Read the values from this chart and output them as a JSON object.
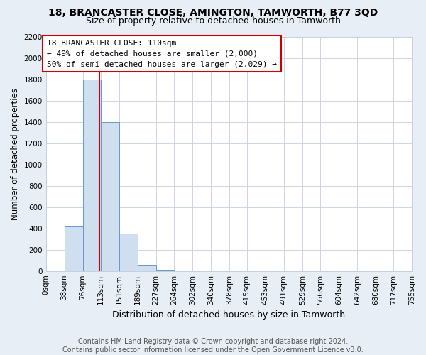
{
  "title": "18, BRANCASTER CLOSE, AMINGTON, TAMWORTH, B77 3QD",
  "subtitle": "Size of property relative to detached houses in Tamworth",
  "xlabel": "Distribution of detached houses by size in Tamworth",
  "ylabel": "Number of detached properties",
  "footer1": "Contains HM Land Registry data © Crown copyright and database right 2024.",
  "footer2": "Contains public sector information licensed under the Open Government Licence v3.0.",
  "bin_edges": [
    0,
    38,
    76,
    113,
    151,
    189,
    227,
    264,
    302,
    340,
    378,
    415,
    453,
    491,
    529,
    566,
    604,
    642,
    680,
    717,
    755
  ],
  "bar_heights": [
    0,
    420,
    1800,
    1400,
    350,
    60,
    10,
    0,
    0,
    0,
    0,
    0,
    0,
    0,
    0,
    0,
    0,
    0,
    0,
    0
  ],
  "bar_color": "#d0dff0",
  "bar_edge_color": "#6699cc",
  "vline_x": 110,
  "vline_color": "#cc0000",
  "ylim": [
    0,
    2200
  ],
  "yticks": [
    0,
    200,
    400,
    600,
    800,
    1000,
    1200,
    1400,
    1600,
    1800,
    2000,
    2200
  ],
  "annotation_lines": [
    "18 BRANCASTER CLOSE: 110sqm",
    "← 49% of detached houses are smaller (2,000)",
    "50% of semi-detached houses are larger (2,029) →"
  ],
  "annotation_box_color": "#cc0000",
  "background_color": "#e8eef5",
  "plot_bg_color": "#ffffff",
  "grid_color": "#c5cfe0",
  "title_fontsize": 10,
  "subtitle_fontsize": 9,
  "xlabel_fontsize": 9,
  "ylabel_fontsize": 8.5,
  "tick_fontsize": 7.5,
  "annotation_fontsize": 8,
  "footer_fontsize": 7
}
